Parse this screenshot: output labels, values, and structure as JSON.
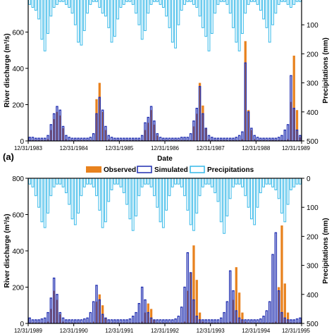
{
  "chart_data": [
    {
      "type": "bar",
      "panel_label": "",
      "xlabel": "Date",
      "ylabel_left": "River discharge (m³/s)",
      "ylabel_right": "Precipitations (mm)",
      "ylim_left": [
        0,
        800
      ],
      "ylim_right_inverted": [
        0,
        500
      ],
      "left_ticks": [
        "0",
        "200",
        "400",
        "600"
      ],
      "right_ticks": [
        "100",
        "200",
        "300",
        "400",
        "500"
      ],
      "x_ticks": [
        "12/31/1983",
        "12/31/1984",
        "12/31/1985",
        "12/31/1986",
        "12/31/1987",
        "12/31/1988",
        "12/31/1989"
      ],
      "series": [
        {
          "name": "Observed",
          "color": "#E8821E",
          "values": [
            5,
            5,
            5,
            5,
            5,
            5,
            10,
            60,
            120,
            160,
            140,
            70,
            10,
            5,
            5,
            5,
            5,
            5,
            5,
            5,
            5,
            5,
            230,
            320,
            160,
            60,
            10,
            5,
            5,
            5,
            5,
            5,
            5,
            5,
            5,
            5,
            5,
            5,
            60,
            100,
            170,
            90,
            30,
            5,
            5,
            5,
            5,
            5,
            5,
            5,
            5,
            5,
            5,
            5,
            80,
            150,
            320,
            195,
            70,
            10,
            5,
            5,
            5,
            5,
            5,
            5,
            5,
            5,
            5,
            5,
            10,
            550,
            170,
            60,
            10,
            5,
            5,
            5,
            5,
            5,
            5,
            5,
            5,
            5,
            5,
            10,
            215,
            470,
            170,
            20
          ]
        },
        {
          "name": "Simulated",
          "color": "#1F2DB0",
          "values": [
            20,
            20,
            15,
            15,
            15,
            15,
            30,
            90,
            150,
            190,
            170,
            80,
            30,
            20,
            15,
            15,
            15,
            15,
            15,
            15,
            20,
            40,
            150,
            240,
            170,
            80,
            30,
            20,
            15,
            15,
            15,
            15,
            15,
            15,
            15,
            15,
            15,
            30,
            100,
            130,
            190,
            110,
            40,
            20,
            15,
            15,
            15,
            15,
            15,
            15,
            20,
            20,
            20,
            40,
            110,
            180,
            300,
            150,
            70,
            30,
            20,
            15,
            15,
            15,
            15,
            15,
            15,
            15,
            20,
            30,
            50,
            430,
            160,
            70,
            30,
            20,
            15,
            15,
            15,
            15,
            15,
            15,
            20,
            30,
            60,
            90,
            360,
            180,
            60,
            30
          ]
        },
        {
          "name": "Precipitations",
          "color": "#35B8E8",
          "values": [
            30,
            40,
            50,
            80,
            150,
            190,
            130,
            70,
            40,
            30,
            20,
            20,
            30,
            40,
            60,
            100,
            160,
            170,
            120,
            60,
            30,
            20,
            20,
            40,
            60,
            70,
            110,
            160,
            140,
            80,
            40,
            30,
            20,
            20,
            30,
            60,
            100,
            150,
            120,
            60,
            30,
            20,
            20,
            30,
            40,
            70,
            110,
            160,
            180,
            100,
            50,
            30,
            20,
            20,
            30,
            40,
            70,
            110,
            140,
            190,
            130,
            60,
            30,
            20,
            20,
            30,
            60,
            110,
            160,
            190,
            130,
            60,
            30,
            20,
            20,
            30,
            50,
            80,
            110,
            160,
            100,
            60,
            30,
            20,
            20,
            30,
            40,
            30,
            20,
            20
          ]
        }
      ]
    },
    {
      "type": "bar",
      "panel_label": "(a)",
      "xlabel": "",
      "ylabel_left": "River discharge (m³/s)",
      "ylabel_right": "Precipitations (mm)",
      "ylim_left": [
        0,
        800
      ],
      "ylim_right_inverted": [
        0,
        500
      ],
      "left_ticks": [
        "0",
        "200",
        "400",
        "600",
        "800"
      ],
      "right_ticks": [
        "0",
        "100",
        "200",
        "300",
        "400",
        "500"
      ],
      "x_ticks": [
        "12/31/1989",
        "12/31/1990",
        "12/31/1991",
        "12/31/1992",
        "12/31/1993",
        "12/31/1994",
        "12/31/1995"
      ],
      "series": [
        {
          "name": "Observed",
          "color": "#E8821E",
          "values": [
            5,
            5,
            5,
            5,
            5,
            5,
            10,
            80,
            180,
            130,
            50,
            10,
            5,
            5,
            5,
            5,
            5,
            5,
            5,
            5,
            5,
            10,
            120,
            160,
            100,
            30,
            5,
            5,
            5,
            5,
            5,
            5,
            5,
            5,
            5,
            5,
            5,
            10,
            60,
            110,
            80,
            20,
            5,
            5,
            5,
            5,
            5,
            5,
            5,
            5,
            5,
            10,
            180,
            280,
            430,
            240,
            60,
            10,
            5,
            5,
            5,
            5,
            5,
            5,
            5,
            5,
            10,
            130,
            310,
            170,
            60,
            10,
            5,
            5,
            5,
            5,
            5,
            5,
            5,
            5,
            5,
            10,
            200,
            540,
            220,
            60,
            5,
            5,
            5,
            5
          ]
        },
        {
          "name": "Simulated",
          "color": "#1F2DB0",
          "values": [
            30,
            20,
            20,
            20,
            25,
            30,
            60,
            140,
            250,
            160,
            60,
            30,
            20,
            20,
            20,
            20,
            20,
            20,
            25,
            30,
            60,
            120,
            210,
            130,
            50,
            30,
            20,
            20,
            20,
            20,
            20,
            20,
            20,
            25,
            40,
            60,
            110,
            200,
            130,
            60,
            30,
            20,
            20,
            20,
            20,
            20,
            20,
            20,
            25,
            40,
            90,
            200,
            390,
            280,
            130,
            40,
            20,
            20,
            20,
            20,
            20,
            20,
            20,
            30,
            60,
            120,
            290,
            180,
            70,
            30,
            20,
            20,
            20,
            20,
            20,
            20,
            25,
            40,
            70,
            120,
            380,
            500,
            180,
            60,
            30,
            20,
            20,
            20,
            25,
            30
          ]
        },
        {
          "name": "Precipitations",
          "color": "#35B8E8",
          "values": [
            20,
            30,
            60,
            100,
            150,
            170,
            120,
            60,
            30,
            20,
            20,
            30,
            50,
            90,
            140,
            160,
            120,
            60,
            30,
            20,
            20,
            30,
            60,
            110,
            170,
            150,
            80,
            40,
            20,
            20,
            30,
            50,
            90,
            140,
            180,
            130,
            60,
            30,
            20,
            20,
            30,
            60,
            100,
            150,
            170,
            110,
            60,
            30,
            20,
            20,
            30,
            60,
            110,
            160,
            180,
            120,
            60,
            30,
            20,
            20,
            30,
            50,
            80,
            150,
            190,
            130,
            70,
            30,
            20,
            20,
            30,
            60,
            100,
            140,
            160,
            100,
            50,
            30,
            20,
            20,
            30,
            40,
            70,
            120,
            150,
            90,
            40,
            30,
            20,
            20
          ]
        }
      ]
    }
  ],
  "legend": {
    "observed": "Observed",
    "simulated": "Simulated",
    "precipitations": "Precipitations"
  }
}
